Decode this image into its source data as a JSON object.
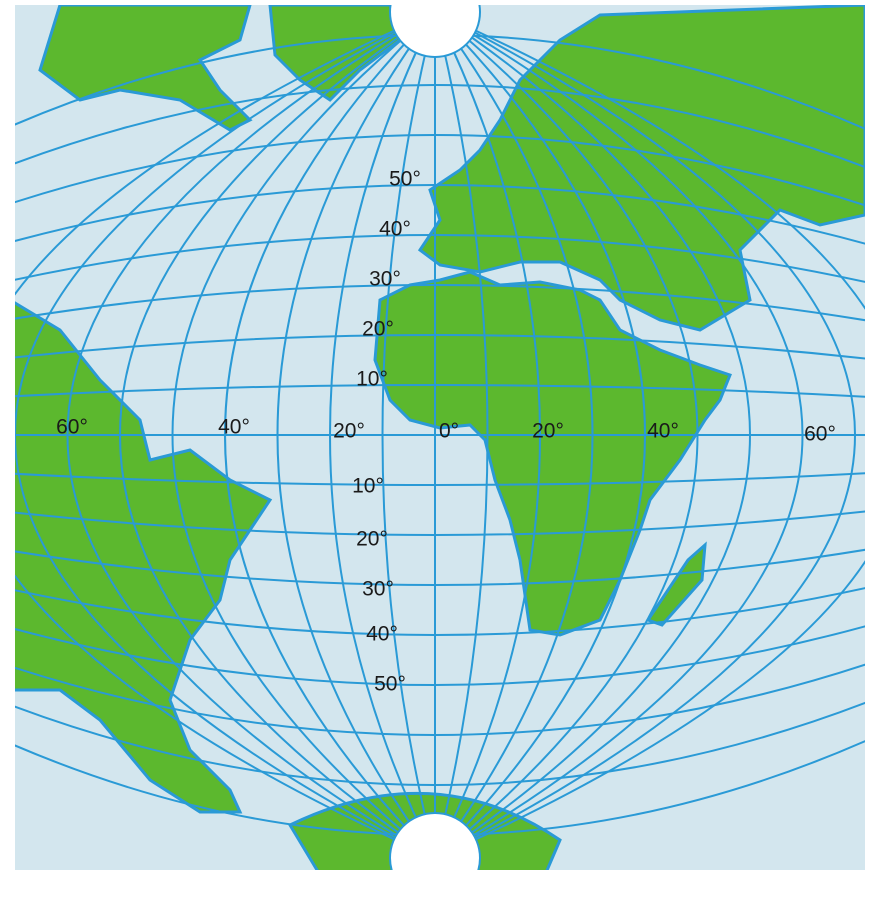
{
  "latitude_labels_north": [
    "50°",
    "40°",
    "30°",
    "20°",
    "10°"
  ],
  "longitude_labels": [
    "60°",
    "40°",
    "20°",
    "0°",
    "20°",
    "40°",
    "60°"
  ],
  "latitude_labels_south": [
    "10°",
    "20°",
    "30°",
    "40°",
    "50°"
  ]
}
